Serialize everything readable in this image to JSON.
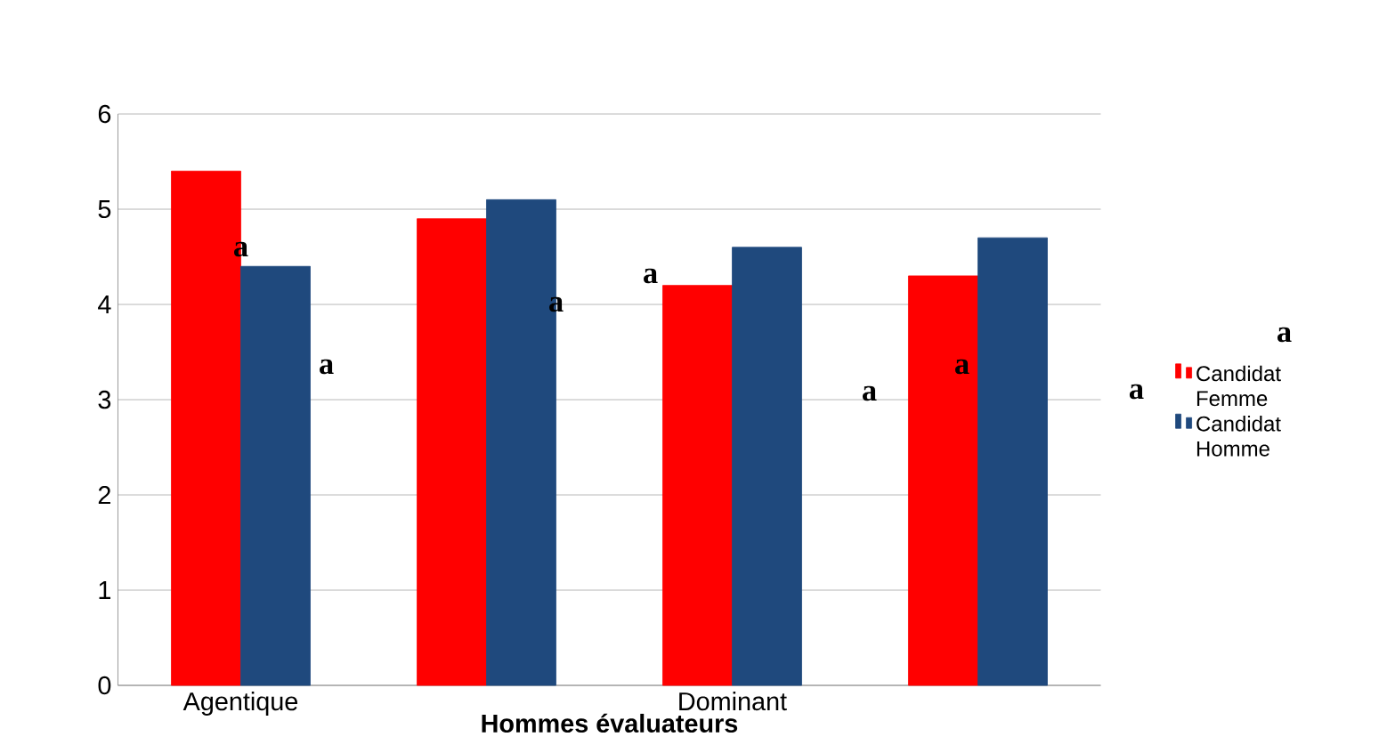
{
  "chart_data": {
    "type": "bar",
    "xlabel": "Hommes évaluateurs",
    "categories": [
      "Agentique",
      null,
      "Dominant",
      null
    ],
    "series": [
      {
        "name": "Candidat Femme",
        "color": "#ff0000",
        "values": [
          5.4,
          4.9,
          4.2,
          4.3
        ]
      },
      {
        "name": "Candidat Homme",
        "color": "#1f497d",
        "values": [
          4.4,
          5.1,
          4.6,
          4.7
        ]
      }
    ],
    "ylim": [
      0,
      6
    ],
    "yticks": [
      0,
      1,
      2,
      3,
      4,
      5,
      6
    ],
    "grid": "y",
    "legend": "right",
    "annotations": [
      "a",
      "a",
      "a",
      "a",
      "a",
      "a",
      "a",
      "a"
    ]
  }
}
